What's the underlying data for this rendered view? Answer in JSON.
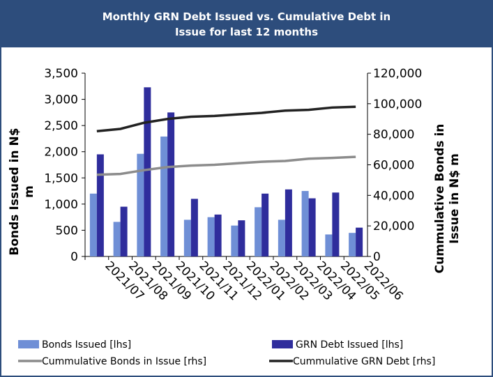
{
  "chart_data": {
    "type": "bar",
    "title": "Monthly GRN Debt Issued vs. Cumulative Debt in Issue for last 12 months",
    "y_label": "Bonds Issued in N$ m",
    "y2_label": "Cummulative Bonds in Issue in N$ m",
    "categories": [
      "2021/07",
      "2021/08",
      "2021/09",
      "2021/10",
      "2021/11",
      "2021/12",
      "2022/01",
      "2022/02",
      "2022/03",
      "2022/04",
      "2022/05",
      "2022/06"
    ],
    "series": [
      {
        "name": "Bonds Issued [lhs]",
        "type": "bar",
        "color": "#6f8fd6",
        "values": [
          1200,
          660,
          1960,
          2290,
          700,
          750,
          590,
          940,
          700,
          1250,
          420,
          450
        ]
      },
      {
        "name": "GRN Debt Issued [lhs]",
        "type": "bar",
        "color": "#2f2d9c",
        "values": [
          1950,
          950,
          3230,
          2750,
          1100,
          800,
          690,
          1200,
          1280,
          1110,
          1220,
          550
        ]
      },
      {
        "name": "Cummulative Bonds in Issue [rhs]",
        "type": "line",
        "axis": "y2",
        "color": "#8c8c8c",
        "values": [
          53500,
          54000,
          56500,
          58500,
          59500,
          60000,
          61000,
          62000,
          62500,
          64000,
          64500,
          65200
        ]
      },
      {
        "name": "Cummulative GRN Debt [rhs]",
        "type": "line",
        "axis": "y2",
        "color": "#222222",
        "values": [
          82000,
          83500,
          87500,
          90000,
          91500,
          92000,
          93000,
          94000,
          95500,
          96000,
          97500,
          98000
        ]
      }
    ],
    "ylim": [
      0,
      3500
    ],
    "yticks": [
      0,
      500,
      {
        "value": 1000,
        "label": "1,000"
      },
      {
        "value": 1500,
        "label": "1,500"
      },
      {
        "value": 2000,
        "label": "2,000"
      },
      {
        "value": 2500,
        "label": "2,500"
      },
      {
        "value": 3000,
        "label": "3,000"
      },
      {
        "value": 3500,
        "label": "3,500"
      }
    ],
    "y2lim": [
      0,
      120000
    ],
    "y2ticks": [
      0,
      {
        "value": 20000,
        "label": "20,000"
      },
      {
        "value": 40000,
        "label": "40,000"
      },
      {
        "value": 60000,
        "label": "60,000"
      },
      {
        "value": 80000,
        "label": "80,000"
      },
      {
        "value": 100000,
        "label": "100,000"
      },
      {
        "value": 120000,
        "label": "120,000"
      }
    ],
    "grid": false
  }
}
